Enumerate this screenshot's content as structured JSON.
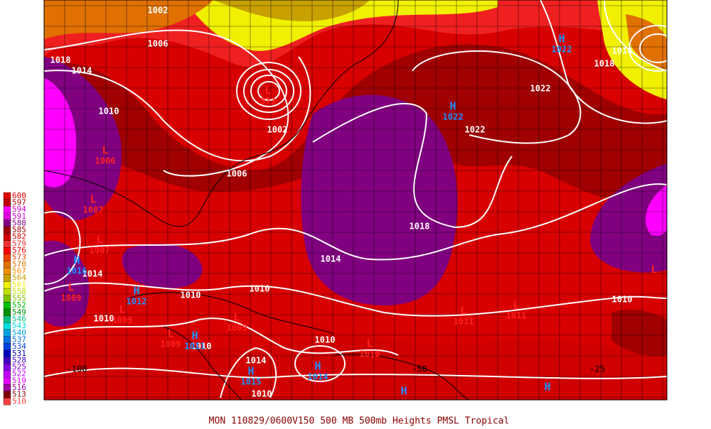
{
  "title": "MON 110829/0600V150  500 MB 500mb Heights PMSL Tropical",
  "legend": [
    {
      "value": 600,
      "color": "#e00000"
    },
    {
      "value": 597,
      "color": "#c00000"
    },
    {
      "value": 594,
      "color": "#ff00ff"
    },
    {
      "value": 591,
      "color": "#e000e0"
    },
    {
      "value": 588,
      "color": "#800080"
    },
    {
      "value": 585,
      "color": "#a00000"
    },
    {
      "value": 582,
      "color": "#d00000"
    },
    {
      "value": 579,
      "color": "#f03030"
    },
    {
      "value": 576,
      "color": "#ff0000"
    },
    {
      "value": 573,
      "color": "#f04000"
    },
    {
      "value": 570,
      "color": "#e07000"
    },
    {
      "value": 567,
      "color": "#f09000"
    },
    {
      "value": 564,
      "color": "#c8a000"
    },
    {
      "value": 561,
      "color": "#f0f000"
    },
    {
      "value": 558,
      "color": "#c0e000"
    },
    {
      "value": 555,
      "color": "#80c000"
    },
    {
      "value": 552,
      "color": "#00c000"
    },
    {
      "value": 549,
      "color": "#009000"
    },
    {
      "value": 546,
      "color": "#00c080"
    },
    {
      "value": 543,
      "color": "#00e0e0"
    },
    {
      "value": 540,
      "color": "#00a0e0"
    },
    {
      "value": 537,
      "color": "#0070e0"
    },
    {
      "value": 534,
      "color": "#0040e0"
    },
    {
      "value": 531,
      "color": "#0000c0"
    },
    {
      "value": 528,
      "color": "#4000c0"
    },
    {
      "value": 525,
      "color": "#8000e0"
    },
    {
      "value": 522,
      "color": "#c000ff"
    },
    {
      "value": 519,
      "color": "#e000ff"
    },
    {
      "value": 516,
      "color": "#a000a0"
    },
    {
      "value": 513,
      "color": "#800000"
    },
    {
      "value": 510,
      "color": "#ff4040"
    }
  ],
  "isobar_labels": [
    "1002",
    "1006",
    "1018",
    "1014",
    "1010",
    "1006",
    "1002",
    "1018",
    "1014",
    "1010",
    "1010",
    "1010",
    "1014",
    "1010",
    "1010",
    "1014",
    "1010",
    "1022",
    "1022",
    "1018",
    "1014",
    "1010"
  ],
  "pressure_centers": [
    {
      "type": "H",
      "value": "1022"
    },
    {
      "type": "H",
      "value": "1022"
    },
    {
      "type": "L",
      "value": "973"
    },
    {
      "type": "L",
      "value": "1006"
    },
    {
      "type": "L",
      "value": "1007"
    },
    {
      "type": "L",
      "value": "1007"
    },
    {
      "type": "H",
      "value": "1016"
    },
    {
      "type": "L",
      "value": "1009"
    },
    {
      "type": "H",
      "value": "1012"
    },
    {
      "type": "L",
      "value": "1009"
    },
    {
      "type": "L",
      "value": "1009"
    },
    {
      "type": "L",
      "value": "1009"
    },
    {
      "type": "H",
      "value": "1011"
    },
    {
      "type": "H",
      "value": "1015"
    },
    {
      "type": "H",
      "value": "1014"
    },
    {
      "type": "L",
      "value": "1010"
    },
    {
      "type": "L",
      "value": "1011"
    },
    {
      "type": "L",
      "value": "1011"
    },
    {
      "type": "H"
    },
    {
      "type": "H"
    },
    {
      "type": "L"
    }
  ],
  "longitude_labels": [
    "-100",
    "-50",
    "-25"
  ]
}
